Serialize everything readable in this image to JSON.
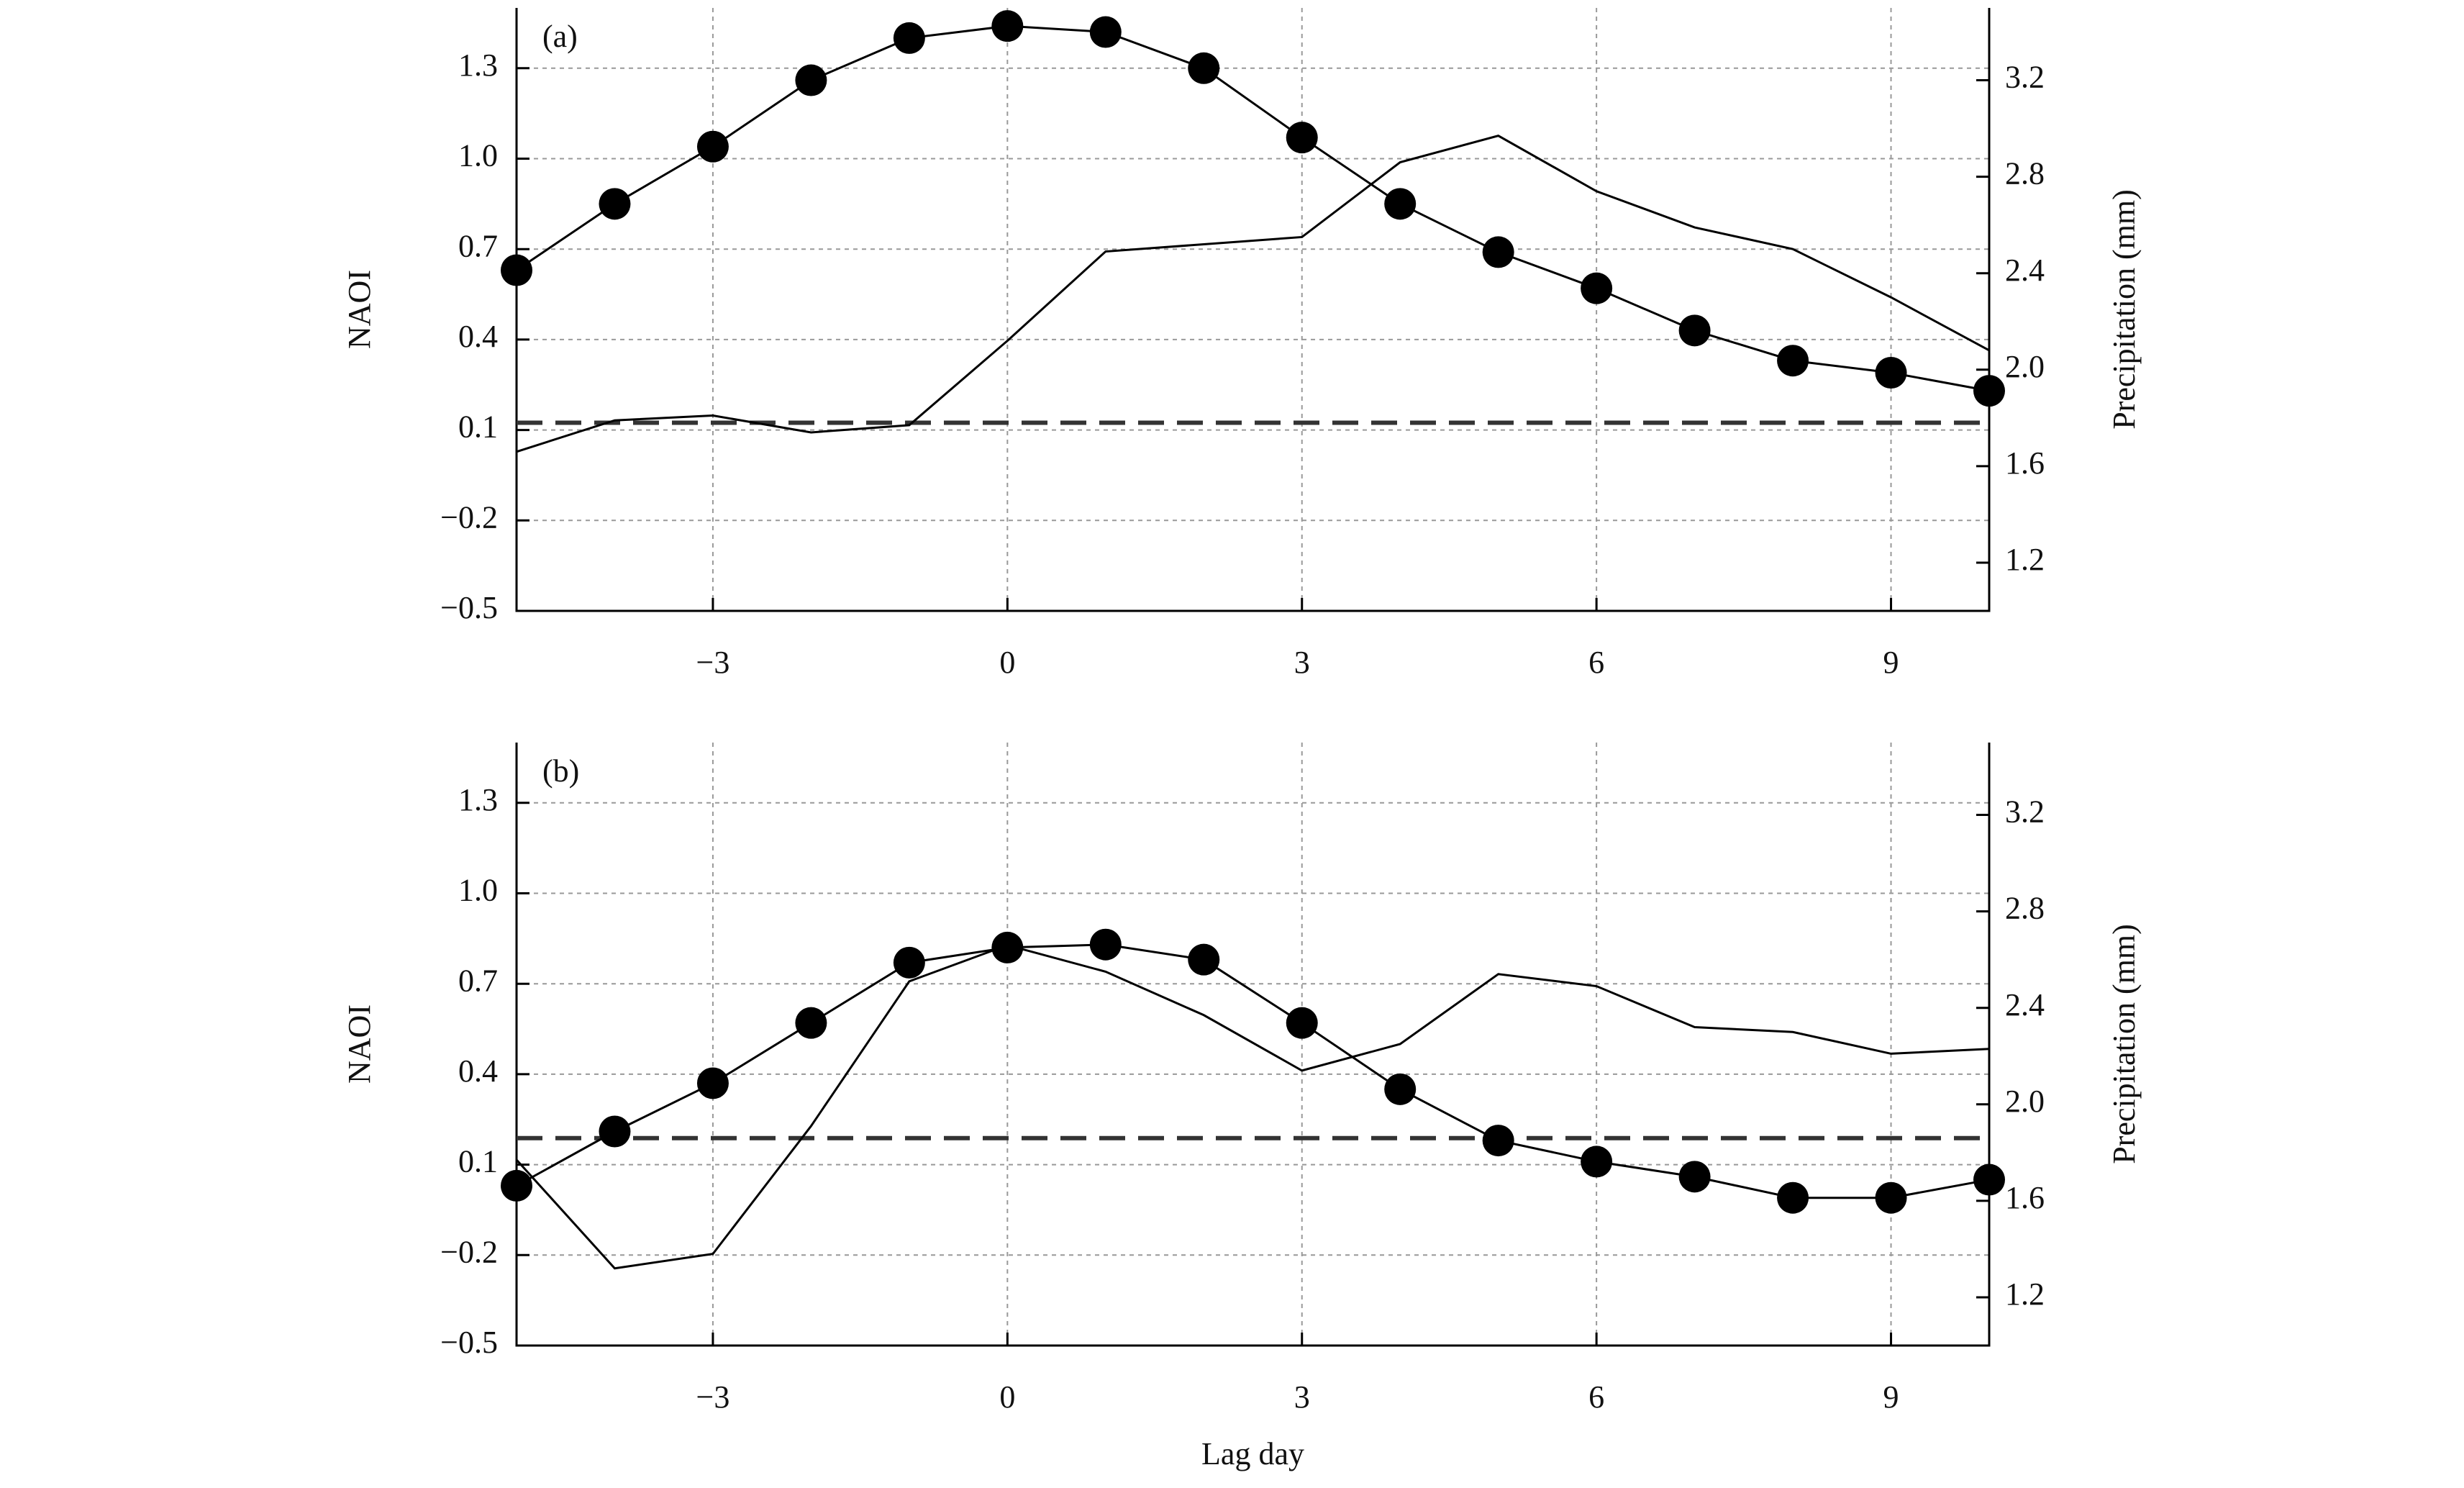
{
  "chart_data": [
    {
      "type": "line",
      "panel_label": "(a)",
      "ylabel": "NAOI",
      "y2label": "Precipitation (mm)",
      "x": [
        -5,
        -4,
        -3,
        -2,
        -1,
        0,
        1,
        2,
        3,
        4,
        5,
        6,
        7,
        8,
        9,
        10
      ],
      "series": [
        {
          "color": "#000000",
          "marker": "circle",
          "values": [
            0.63,
            0.85,
            1.04,
            1.26,
            1.4,
            1.44,
            1.42,
            1.3,
            1.07,
            0.85,
            0.69,
            0.57,
            0.43,
            0.33,
            0.29,
            0.23
          ]
        },
        {
          "color": "#000000",
          "axis": "y2",
          "values": [
            1.66,
            1.79,
            1.81,
            1.74,
            1.77,
            2.12,
            2.49,
            2.52,
            2.55,
            2.86,
            2.97,
            2.74,
            2.59,
            2.5,
            2.3,
            2.08
          ]
        }
      ],
      "reference_line": {
        "value": 1.78,
        "axis": "y2",
        "color": "#333333",
        "dashed": true
      },
      "xlim": [
        -5,
        10
      ],
      "ylim": [
        -0.5,
        1.5
      ],
      "y2lim": [
        1.0,
        3.5
      ],
      "xticks": [
        {
          "value": -3,
          "label": "−3"
        },
        0,
        3,
        6,
        9
      ],
      "yticks": [
        {
          "value": -0.5,
          "label": "−0.5"
        },
        {
          "value": -0.2,
          "label": "−0.2"
        },
        0.1,
        0.4,
        0.7,
        {
          "value": 1.0,
          "label": "1.0"
        },
        1.3
      ],
      "y2ticks": [
        1.2,
        1.6,
        {
          "value": 2.0,
          "label": "2.0"
        },
        2.4,
        2.8,
        3.2
      ],
      "grid": true
    },
    {
      "type": "line",
      "panel_label": "(b)",
      "ylabel": "NAOI",
      "y2label": "Precipitation (mm)",
      "xlabel": "Lag day",
      "x": [
        -5,
        -4,
        -3,
        -2,
        -1,
        0,
        1,
        2,
        3,
        4,
        5,
        6,
        7,
        8,
        9,
        10
      ],
      "series": [
        {
          "color": "#000000",
          "marker": "circle",
          "values": [
            0.03,
            0.21,
            0.37,
            0.57,
            0.77,
            0.82,
            0.83,
            0.78,
            0.57,
            0.35,
            0.18,
            0.11,
            0.06,
            -0.01,
            -0.01,
            0.05
          ]
        },
        {
          "color": "#000000",
          "axis": "y2",
          "values": [
            1.77,
            1.32,
            1.38,
            1.91,
            2.51,
            2.66,
            2.55,
            2.37,
            2.14,
            2.25,
            2.54,
            2.49,
            2.32,
            2.3,
            2.21,
            2.23
          ]
        }
      ],
      "reference_line": {
        "value": 1.86,
        "axis": "y2",
        "color": "#333333",
        "dashed": true
      },
      "xlim": [
        -5,
        10
      ],
      "ylim": [
        -0.5,
        1.5
      ],
      "y2lim": [
        1.0,
        3.5
      ],
      "xticks": [
        {
          "value": -3,
          "label": "−3"
        },
        0,
        3,
        6,
        9
      ],
      "yticks": [
        {
          "value": -0.5,
          "label": "−0.5"
        },
        {
          "value": -0.2,
          "label": "−0.2"
        },
        0.1,
        0.4,
        0.7,
        {
          "value": 1.0,
          "label": "1.0"
        },
        1.3
      ],
      "y2ticks": [
        1.2,
        1.6,
        {
          "value": 2.0,
          "label": "2.0"
        },
        2.4,
        2.8,
        3.2
      ],
      "grid": true
    }
  ]
}
